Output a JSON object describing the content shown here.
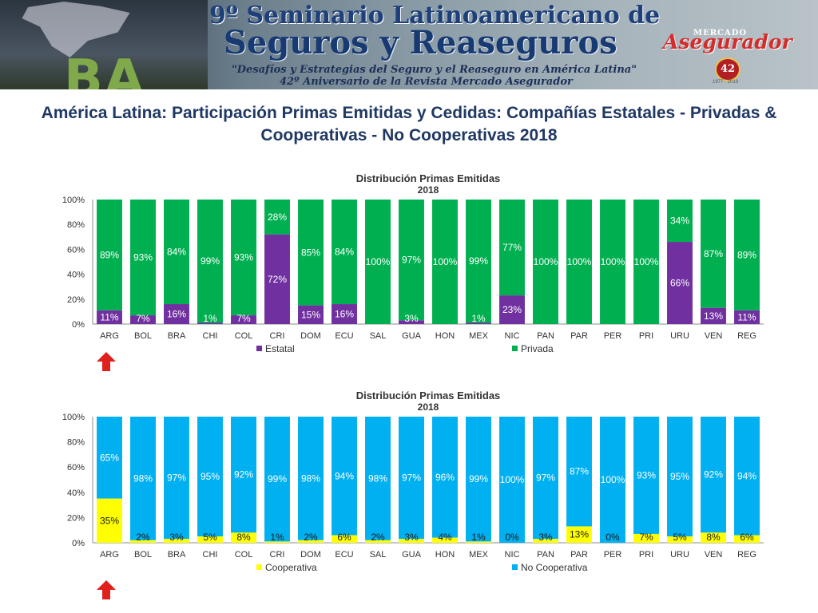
{
  "banner": {
    "line1": "9º Seminario Latinoamericano de",
    "line2": "Seguros y Reaseguros",
    "line3": "\"Desafíos y Estrategias del Seguro y el Reaseguro en América Latina\"",
    "line4": "42º Aniversario de la Revista Mercado Asegurador",
    "city": "BA",
    "logo_top": "MERCADO",
    "logo": "Asegurador",
    "seal_number": "42",
    "seal_years": "1977 - 2019"
  },
  "slide_title": "América Latina: Participación Primas Emitidas y Cedidas: Compañías Estatales - Privadas & Cooperativas - No Cooperativas 2018",
  "colors": {
    "estatal": "#7030a0",
    "privada": "#00b050",
    "cooperativa": "#ffff00",
    "no_cooperativa": "#00b0f0",
    "arrow": "#e0201c"
  },
  "icons": [
    "up-arrow-icon"
  ],
  "chart_data": [
    {
      "type": "bar",
      "stacked": true,
      "percent": true,
      "title": "Distribución Primas Emitidas",
      "subtitle": "2018",
      "categories": [
        "ARG",
        "BOL",
        "BRA",
        "CHI",
        "COL",
        "CRI",
        "DOM",
        "ECU",
        "SAL",
        "GUA",
        "HON",
        "MEX",
        "NIC",
        "PAN",
        "PAR",
        "PER",
        "PRI",
        "URU",
        "VEN",
        "REG"
      ],
      "series": [
        {
          "name": "Estatal",
          "values": [
            11,
            7,
            16,
            1,
            7,
            72,
            15,
            16,
            0,
            3,
            0,
            1,
            23,
            0,
            0,
            0,
            0,
            66,
            13,
            11
          ]
        },
        {
          "name": "Privada",
          "values": [
            89,
            93,
            84,
            99,
            93,
            28,
            85,
            84,
            100,
            97,
            100,
            99,
            77,
            100,
            100,
            100,
            100,
            34,
            87,
            89
          ]
        }
      ],
      "data_labels": {
        "Estatal": [
          "11%",
          "7%",
          "16%",
          "1%",
          "7%",
          "72%",
          "15%",
          "16%",
          "",
          "3%",
          "",
          "1%",
          "23%",
          "",
          "",
          "",
          "",
          "66%",
          "13%",
          "11%"
        ],
        "Privada": [
          "89%",
          "93%",
          "84%",
          "99%",
          "93%",
          "28%",
          "85%",
          "84%",
          "100%",
          "97%",
          "100%",
          "99%",
          "77%",
          "100%",
          "100%",
          "100%",
          "100%",
          "34%",
          "87%",
          "89%"
        ]
      },
      "y_ticks": [
        "0%",
        "20%",
        "40%",
        "60%",
        "80%",
        "100%"
      ],
      "ylim": [
        0,
        100
      ],
      "legend": "bottom"
    },
    {
      "type": "bar",
      "stacked": true,
      "percent": true,
      "title": "Distribución Primas Emitidas",
      "subtitle": "2018",
      "categories": [
        "ARG",
        "BOL",
        "BRA",
        "CHI",
        "COL",
        "CRI",
        "DOM",
        "ECU",
        "SAL",
        "GUA",
        "HON",
        "MEX",
        "NIC",
        "PAN",
        "PAR",
        "PER",
        "PRI",
        "URU",
        "VEN",
        "REG"
      ],
      "series": [
        {
          "name": "Cooperativa",
          "values": [
            35,
            2,
            3,
            5,
            8,
            1,
            2,
            6,
            2,
            3,
            4,
            1,
            0,
            3,
            13,
            0,
            7,
            5,
            8,
            6
          ]
        },
        {
          "name": "No Cooperativa",
          "values": [
            65,
            98,
            97,
            95,
            92,
            99,
            98,
            94,
            98,
            97,
            96,
            99,
            100,
            97,
            87,
            100,
            93,
            95,
            92,
            94
          ]
        }
      ],
      "data_labels": {
        "Cooperativa": [
          "35%",
          "2%",
          "3%",
          "5%",
          "8%",
          "1%",
          "2%",
          "6%",
          "2%",
          "3%",
          "4%",
          "1%",
          "0%",
          "3%",
          "13%",
          "0%",
          "7%",
          "5%",
          "8%",
          "6%"
        ],
        "No Cooperativa": [
          "65%",
          "98%",
          "97%",
          "95%",
          "92%",
          "99%",
          "98%",
          "94%",
          "98%",
          "97%",
          "96%",
          "99%",
          "100%",
          "97%",
          "87%",
          "100%",
          "93%",
          "95%",
          "92%",
          "94%"
        ]
      },
      "y_ticks": [
        "0%",
        "20%",
        "40%",
        "60%",
        "80%",
        "100%"
      ],
      "ylim": [
        0,
        100
      ],
      "legend": "bottom"
    }
  ]
}
